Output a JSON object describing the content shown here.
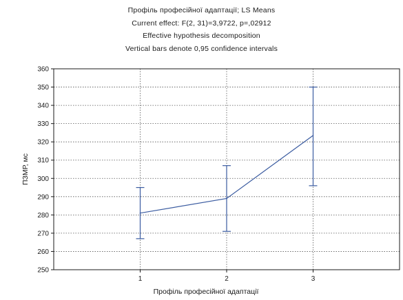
{
  "chart_data": {
    "type": "line",
    "title_lines": [
      "Профіль професійної адаптації; LS Means",
      "Current effect: F(2, 31)=3,9722, p=,02912",
      "Effective hypothesis decomposition",
      "Vertical bars denote 0,95 confidence intervals"
    ],
    "xlabel": "Профіль професійної адаптації",
    "ylabel": "ПЗМР, мс",
    "categories": [
      "1",
      "2",
      "3"
    ],
    "series": [
      {
        "values": [
          281,
          289,
          323.5
        ],
        "ci_lower": [
          267,
          271,
          296
        ],
        "ci_upper": [
          295,
          307,
          350
        ]
      }
    ],
    "ylim": [
      250,
      360
    ],
    "yticks": [
      "250",
      "260",
      "270",
      "280",
      "290",
      "300",
      "310",
      "320",
      "330",
      "340",
      "350",
      "360"
    ],
    "grid": true,
    "line_color": "#3a5ba0"
  }
}
